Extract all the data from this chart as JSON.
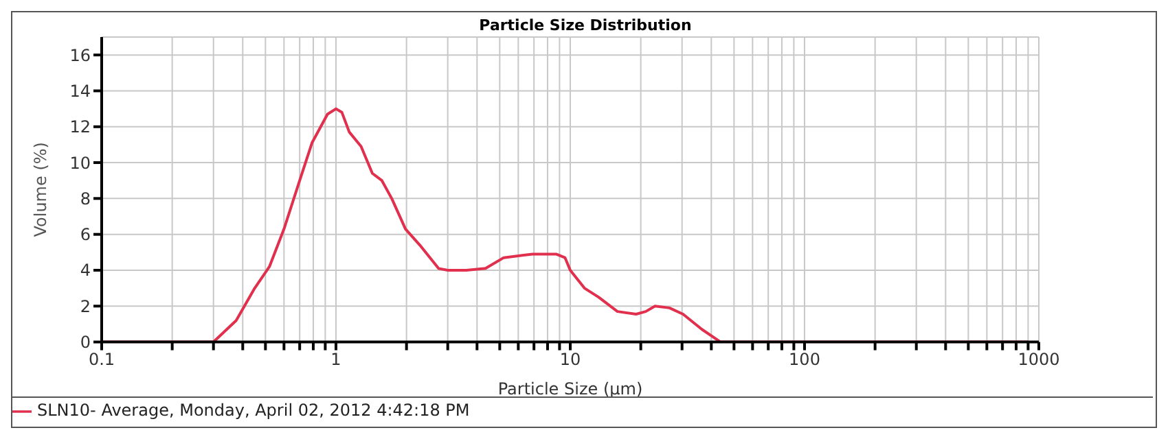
{
  "chart_data": {
    "type": "line",
    "title": "Particle Size Distribution",
    "xlabel": "Particle Size (µm)",
    "ylabel": "Volume (%)",
    "log": "x",
    "grid": true,
    "legend": "bottom",
    "marker": "none",
    "line_style": "solid",
    "xlim": [
      0.1,
      1000
    ],
    "xticks": [
      0.1,
      {
        "value": 0.2,
        "label": null
      },
      {
        "value": 0.3,
        "label": null
      },
      {
        "value": 0.4,
        "label": null
      },
      {
        "value": 0.5,
        "label": null
      },
      {
        "value": 0.6,
        "label": null
      },
      {
        "value": 0.7,
        "label": null
      },
      {
        "value": 0.8,
        "label": null
      },
      {
        "value": 0.9,
        "label": null
      },
      1,
      {
        "value": 2,
        "label": null
      },
      {
        "value": 3,
        "label": null
      },
      {
        "value": 4,
        "label": null
      },
      {
        "value": 5,
        "label": null
      },
      {
        "value": 6,
        "label": null
      },
      {
        "value": 7,
        "label": null
      },
      {
        "value": 8,
        "label": null
      },
      {
        "value": 9,
        "label": null
      },
      10,
      {
        "value": 20,
        "label": null
      },
      {
        "value": 30,
        "label": null
      },
      {
        "value": 40,
        "label": null
      },
      {
        "value": 50,
        "label": null
      },
      {
        "value": 60,
        "label": null
      },
      {
        "value": 70,
        "label": null
      },
      {
        "value": 80,
        "label": null
      },
      {
        "value": 90,
        "label": null
      },
      100,
      {
        "value": 200,
        "label": null
      },
      {
        "value": 300,
        "label": null
      },
      {
        "value": 400,
        "label": null
      },
      {
        "value": 500,
        "label": null
      },
      {
        "value": 600,
        "label": null
      },
      {
        "value": 700,
        "label": null
      },
      {
        "value": 800,
        "label": null
      },
      {
        "value": 900,
        "label": null
      },
      1000
    ],
    "ylim": [
      0,
      17
    ],
    "yticks": [
      0,
      2,
      4,
      6,
      8,
      10,
      12,
      14,
      16
    ],
    "x": [
      0.1,
      0.2,
      0.3,
      0.375,
      0.45,
      0.52,
      0.6,
      0.68,
      0.79,
      0.92,
      1.0,
      1.06,
      1.14,
      1.28,
      1.43,
      1.57,
      1.73,
      1.98,
      2.28,
      2.74,
      3.0,
      3.6,
      4.35,
      5.2,
      6.9,
      8.7,
      9.5,
      10,
      11.5,
      13.2,
      15.9,
      19.1,
      21,
      23,
      26.5,
      30.3,
      36.5,
      43.8,
      100,
      900
    ],
    "series": [
      {
        "name": "SLN10- Average, Monday, April 02, 2012 4:42:18 PM",
        "color": "#e0304e",
        "values": [
          0,
          0,
          0,
          1.2,
          3.0,
          4.2,
          6.3,
          8.5,
          11.1,
          12.7,
          13.0,
          12.8,
          11.7,
          10.9,
          9.4,
          9.0,
          8.0,
          6.3,
          5.4,
          4.1,
          4.0,
          4.0,
          4.1,
          4.7,
          4.9,
          4.9,
          4.7,
          4.0,
          3.0,
          2.5,
          1.7,
          1.55,
          1.7,
          2.0,
          1.9,
          1.55,
          0.7,
          0,
          0,
          0
        ]
      }
    ]
  }
}
